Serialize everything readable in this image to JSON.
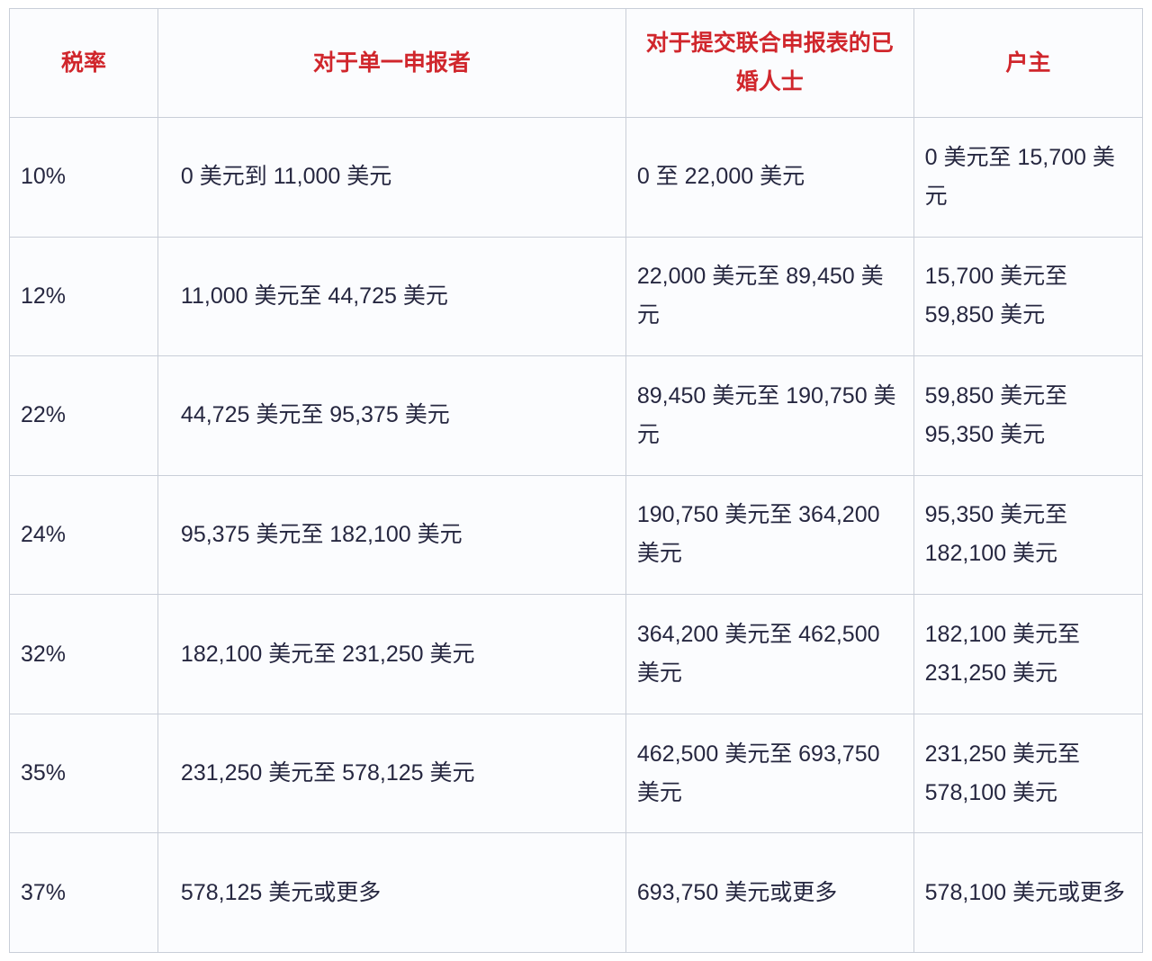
{
  "table": {
    "colors": {
      "header_text": "#d0262c",
      "body_text": "#262740",
      "border": "#c9ced8",
      "cell_background": "#fbfcfe"
    },
    "columns": [
      {
        "key": "rate",
        "label": "税率"
      },
      {
        "key": "single",
        "label": "对于单一申报者"
      },
      {
        "key": "joint",
        "label": "对于提交联合申报表的已婚人士"
      },
      {
        "key": "head",
        "label": "户主"
      }
    ],
    "rows": [
      {
        "rate": "10%",
        "single": "0 美元到 11,000 美元",
        "joint": "0 至 22,000 美元",
        "head": "0 美元至 15,700 美元"
      },
      {
        "rate": "12%",
        "single": "11,000 美元至 44,725 美元",
        "joint": "22,000 美元至 89,450 美元",
        "head": "15,700 美元至 59,850 美元"
      },
      {
        "rate": "22%",
        "single": "44,725 美元至 95,375 美元",
        "joint": "89,450 美元至 190,750 美元",
        "head": "59,850 美元至 95,350 美元"
      },
      {
        "rate": "24%",
        "single": "95,375 美元至 182,100 美元",
        "joint": "190,750 美元至 364,200 美元",
        "head": "95,350 美元至 182,100 美元"
      },
      {
        "rate": "32%",
        "single": "182,100 美元至 231,250 美元",
        "joint": "364,200 美元至 462,500 美元",
        "head": "182,100 美元至 231,250 美元"
      },
      {
        "rate": "35%",
        "single": "231,250 美元至 578,125 美元",
        "joint": "462,500 美元至 693,750 美元",
        "head": "231,250 美元至 578,100 美元"
      },
      {
        "rate": "37%",
        "single": "578,125 美元或更多",
        "joint": "693,750 美元或更多",
        "head": "578,100 美元或更多"
      }
    ]
  },
  "chart_data": {
    "type": "table",
    "title": "",
    "columns": [
      "税率",
      "对于单一申报者",
      "对于提交联合申报表的已婚人士",
      "户主"
    ],
    "rows": [
      [
        "10%",
        "0 美元到 11,000 美元",
        "0 至 22,000 美元",
        "0 美元至 15,700 美元"
      ],
      [
        "12%",
        "11,000 美元至 44,725 美元",
        "22,000 美元至 89,450 美元",
        "15,700 美元至 59,850 美元"
      ],
      [
        "22%",
        "44,725 美元至 95,375 美元",
        "89,450 美元至 190,750 美元",
        "59,850 美元至 95,350 美元"
      ],
      [
        "24%",
        "95,375 美元至 182,100 美元",
        "190,750 美元至 364,200 美元",
        "95,350 美元至 182,100 美元"
      ],
      [
        "32%",
        "182,100 美元至 231,250 美元",
        "364,200 美元至 462,500 美元",
        "182,100 美元至 231,250 美元"
      ],
      [
        "35%",
        "231,250 美元至 578,125 美元",
        "462,500 美元至 693,750 美元",
        "231,250 美元至 578,100 美元"
      ],
      [
        "37%",
        "578,125 美元或更多",
        "693,750 美元或更多",
        "578,100 美元或更多"
      ]
    ]
  }
}
